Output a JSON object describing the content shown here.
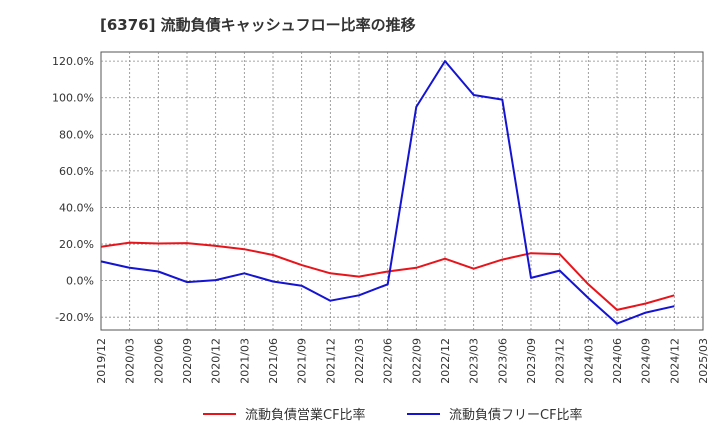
{
  "chart_data": {
    "type": "line",
    "title": "[6376]  流動負債キャッシュフロー比率の推移",
    "xlabel": "",
    "ylabel": "",
    "ylim": [
      -27,
      125
    ],
    "yticks": [
      120,
      100,
      80,
      60,
      40,
      20,
      0,
      -20
    ],
    "ytick_labels": [
      "120.0%",
      "100.0%",
      "80.0%",
      "60.0%",
      "40.0%",
      "20.0%",
      "0.0%",
      "-20.0%"
    ],
    "categories": [
      "2019/12",
      "2020/03",
      "2020/06",
      "2020/09",
      "2020/12",
      "2021/03",
      "2021/06",
      "2021/09",
      "2021/12",
      "2022/03",
      "2022/06",
      "2022/09",
      "2022/12",
      "2023/03",
      "2023/06",
      "2023/09",
      "2023/12",
      "2024/03",
      "2024/06",
      "2024/09",
      "2024/12",
      "2025/03"
    ],
    "grid": true,
    "legend_position": "bottom",
    "series": [
      {
        "name": "流動負債営業CF比率",
        "color": "#e8141b",
        "values": [
          18.5,
          20.8,
          20.3,
          20.5,
          19.0,
          17.2,
          14.0,
          8.5,
          4.0,
          2.2,
          5.0,
          7.0,
          12.0,
          6.5,
          11.5,
          15.0,
          14.5,
          -2.0,
          -16.0,
          -12.5,
          -8.0,
          null
        ]
      },
      {
        "name": "流動負債フリーCF比率",
        "color": "#1414d2",
        "values": [
          10.5,
          7.0,
          5.0,
          -0.8,
          0.3,
          4.0,
          -0.5,
          -2.8,
          -11.0,
          -8.0,
          -2.0,
          95.0,
          120.0,
          101.5,
          99.0,
          1.5,
          5.5,
          -9.5,
          -23.5,
          -17.5,
          -14.0,
          null
        ]
      }
    ]
  }
}
